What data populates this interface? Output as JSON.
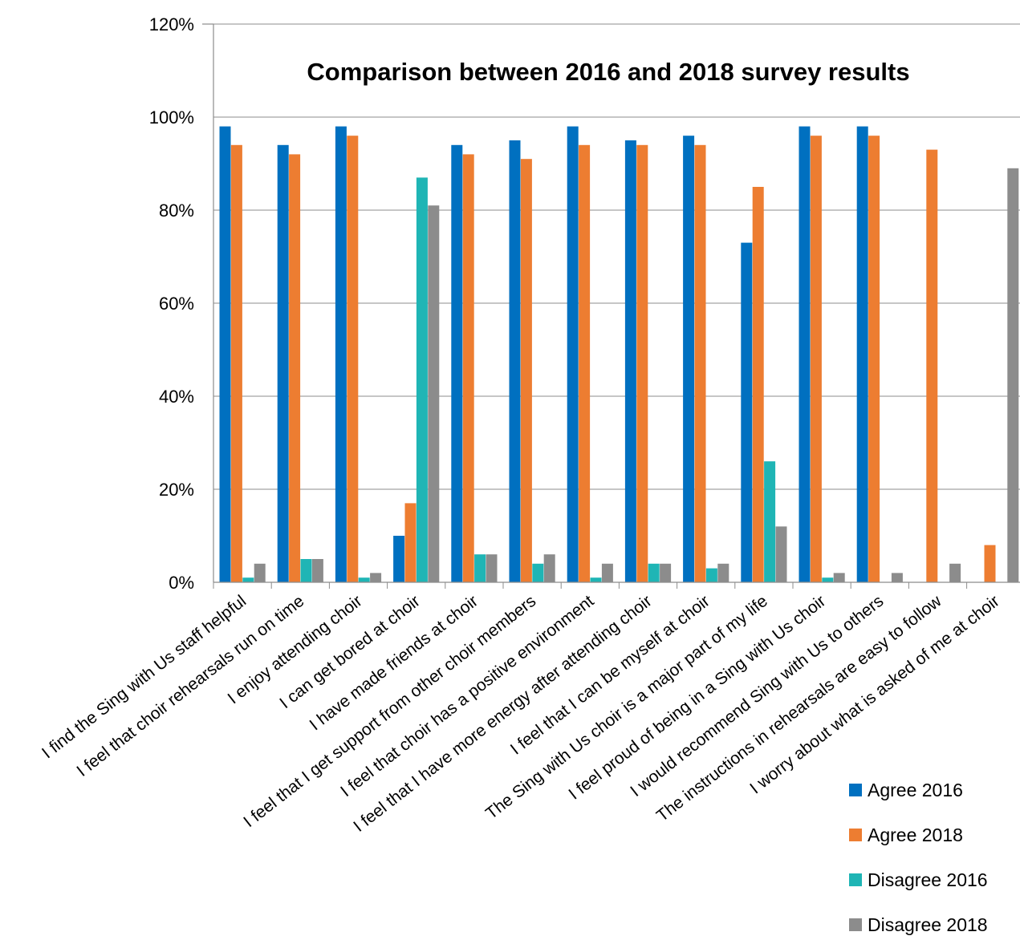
{
  "chart_data": {
    "type": "bar",
    "title": "Comparison between 2016 and 2018 survey results",
    "xlabel": "",
    "ylabel": "",
    "ylim": [
      0,
      1.2
    ],
    "yticks": [
      "0%",
      "20%",
      "40%",
      "60%",
      "80%",
      "100%",
      "120%"
    ],
    "grid": true,
    "legend_position": "bottom-right",
    "categories": [
      "I find the Sing with Us staff helpful",
      "I feel that choir rehearsals run on time",
      "I enjoy attending choir",
      "I can get bored at choir",
      "I have made friends at choir",
      "I feel that I get support from other choir members",
      "I feel that choir has a positive environment",
      "I feel that I have more energy after attending choir",
      "I feel that I can be myself at choir",
      "The Sing with Us choir is a major part of my life",
      "I feel proud of being in a Sing with Us choir",
      "I would recommend Sing with Us to others",
      "The instructions in rehearsals are easy to follow",
      "I worry about what is asked of me at choir"
    ],
    "series": [
      {
        "name": "Agree 2016",
        "color": "#0070C0",
        "values": [
          0.98,
          0.94,
          0.98,
          0.1,
          0.94,
          0.95,
          0.98,
          0.95,
          0.96,
          0.73,
          0.98,
          0.98,
          null,
          null
        ]
      },
      {
        "name": "Agree 2018",
        "color": "#ED7D31",
        "values": [
          0.94,
          0.92,
          0.96,
          0.17,
          0.92,
          0.91,
          0.94,
          0.94,
          0.94,
          0.85,
          0.96,
          0.96,
          0.93,
          0.08
        ]
      },
      {
        "name": "Disagree 2016",
        "color": "#1FB5B5",
        "values": [
          0.01,
          0.05,
          0.01,
          0.87,
          0.06,
          0.04,
          0.01,
          0.04,
          0.03,
          0.26,
          0.01,
          0.0,
          null,
          null
        ]
      },
      {
        "name": "Disagree 2018",
        "color": "#8C8C8C",
        "values": [
          0.04,
          0.05,
          0.02,
          0.81,
          0.06,
          0.06,
          0.04,
          0.04,
          0.04,
          0.12,
          0.02,
          0.02,
          0.04,
          0.89
        ]
      }
    ]
  }
}
